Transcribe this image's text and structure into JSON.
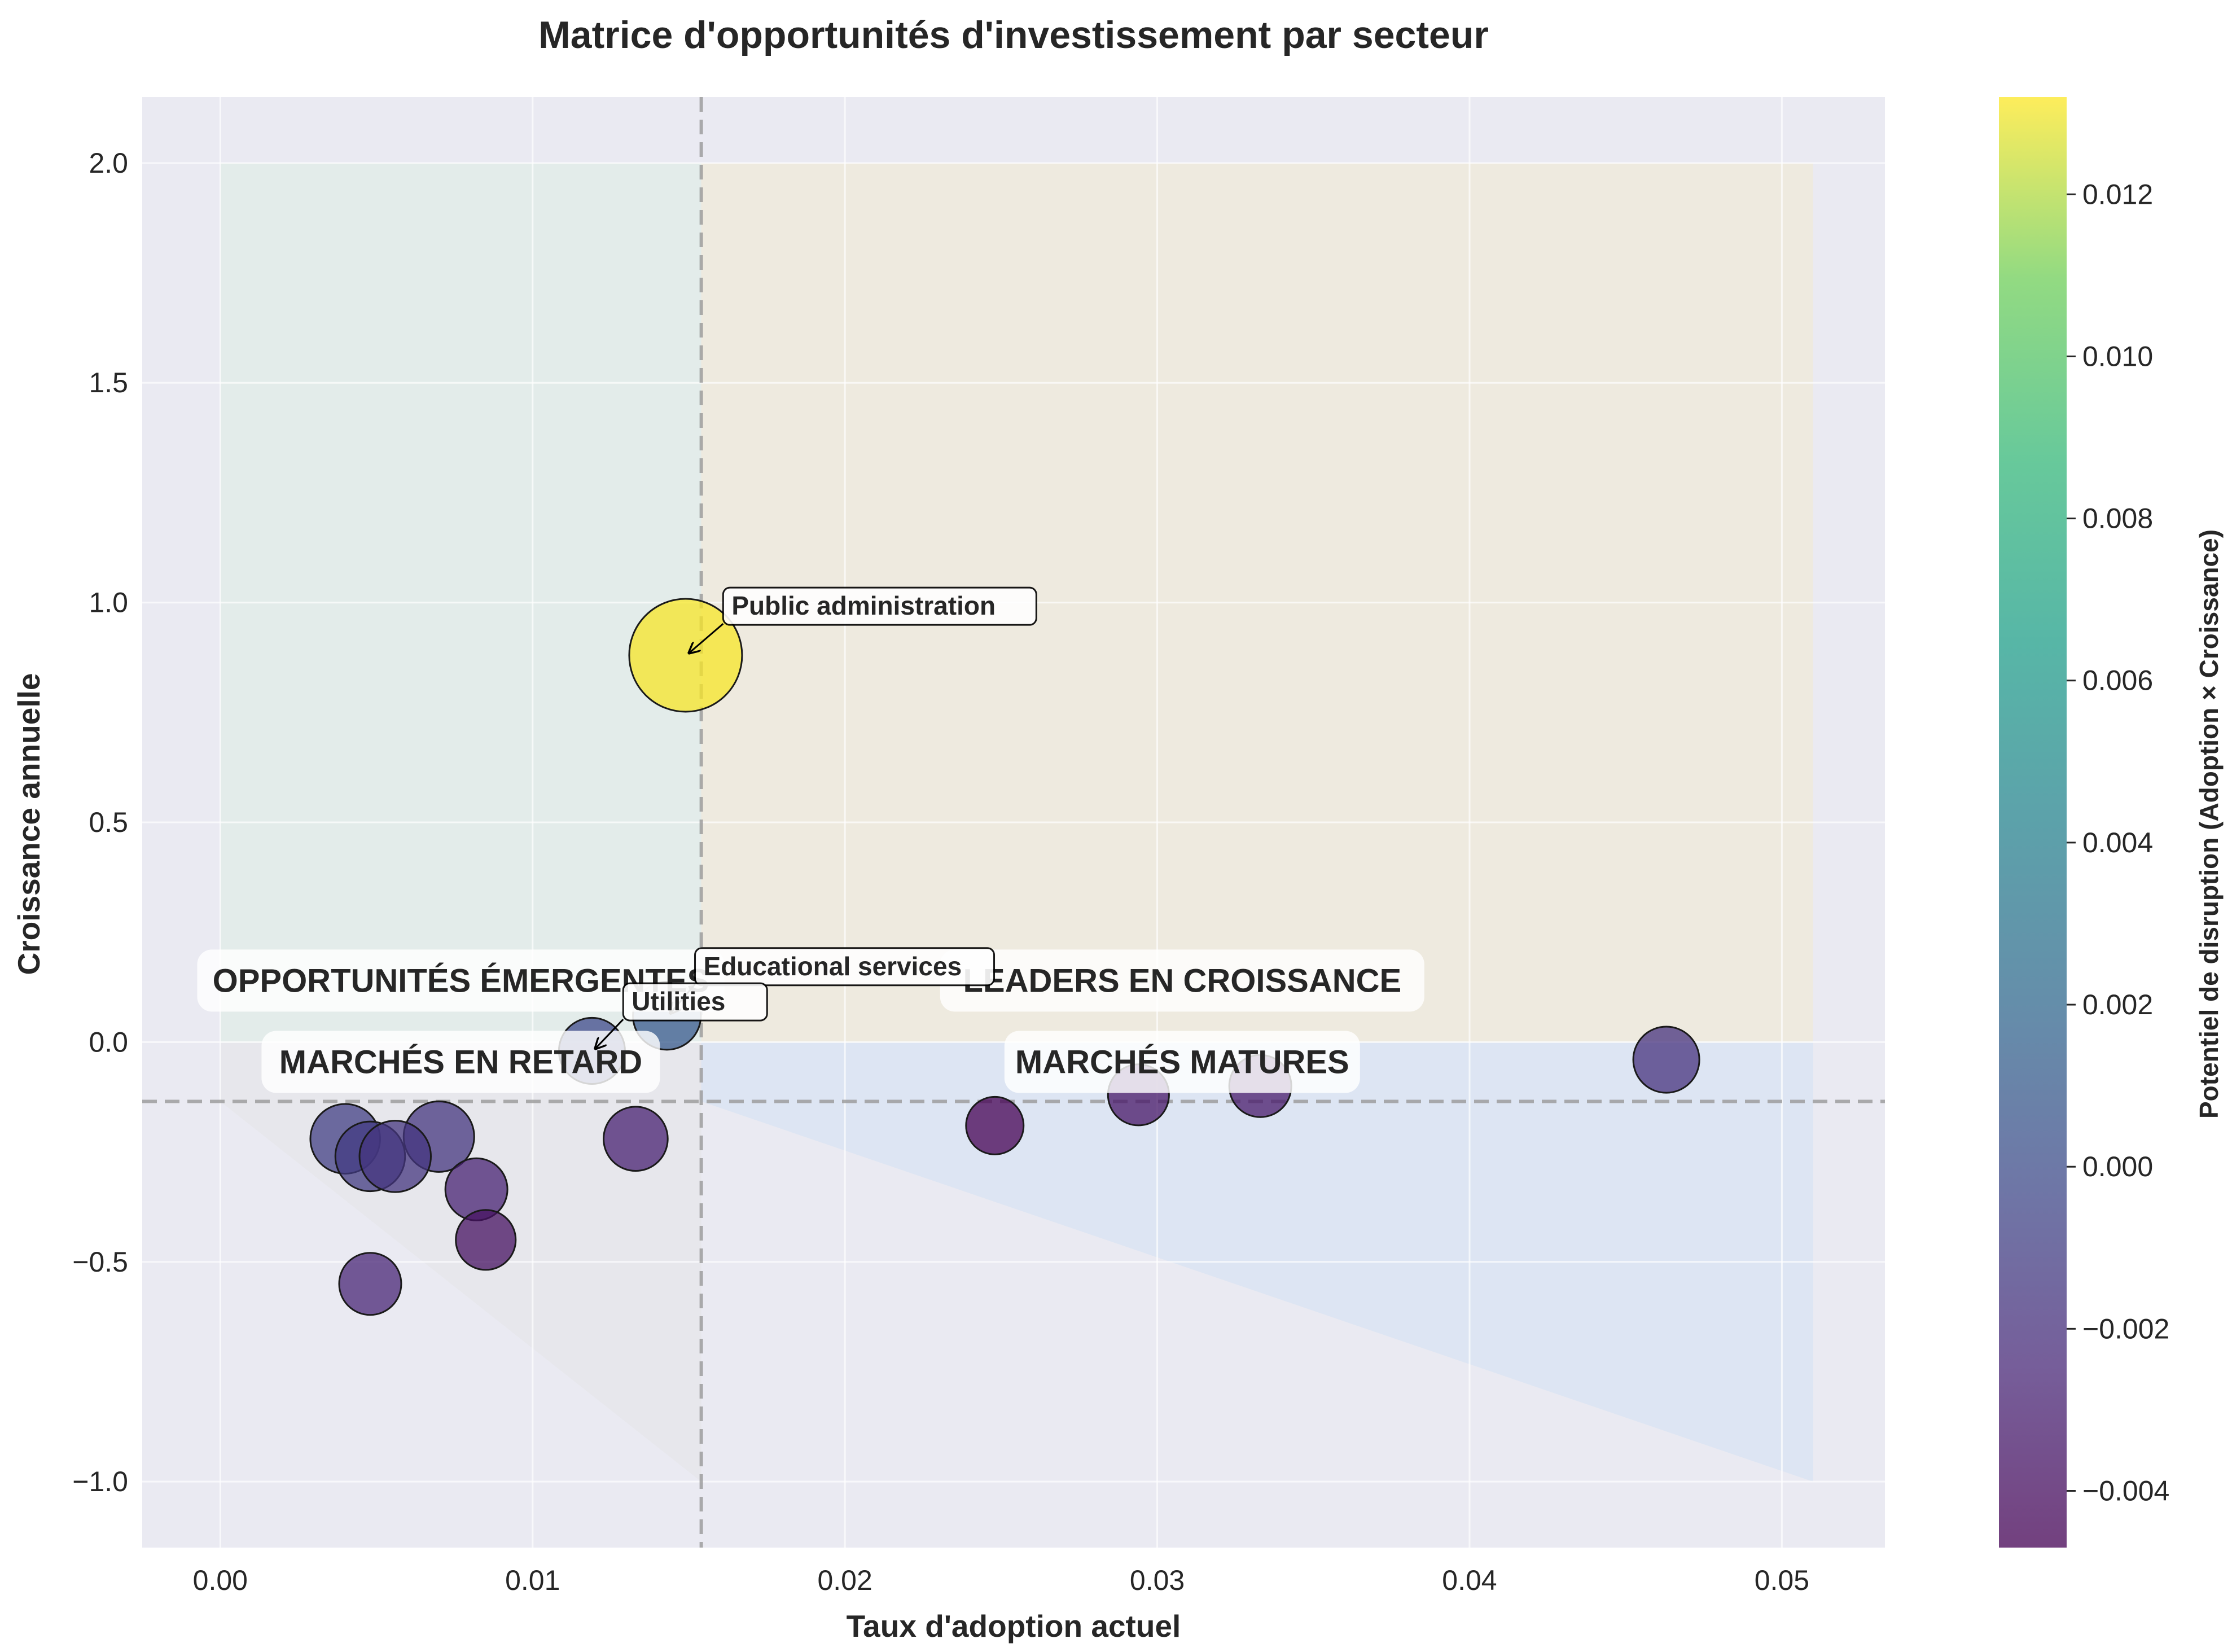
{
  "chart_data": {
    "type": "scatter",
    "title": "Matrice d'opportunités d'investissement par secteur",
    "xlabel": "Taux d'adoption actuel",
    "ylabel": "Croissance annuelle",
    "xlim": [
      -0.0025,
      0.0533
    ],
    "ylim": [
      -1.15,
      2.15
    ],
    "x_ticks": [
      0.0,
      0.01,
      0.02,
      0.03,
      0.04,
      0.05
    ],
    "x_tick_labels": [
      "0.00",
      "0.01",
      "0.02",
      "0.03",
      "0.04",
      "0.05"
    ],
    "y_ticks": [
      -1.0,
      -0.5,
      0.0,
      0.5,
      1.0,
      1.5,
      2.0
    ],
    "y_tick_labels": [
      "−1.0",
      "−0.5",
      "0.0",
      "0.5",
      "1.0",
      "1.5",
      "2.0"
    ],
    "grid": true,
    "reference_lines": {
      "x": 0.0154,
      "y": -0.135
    },
    "colorbar": {
      "label": "Potentiel de disruption (Adoption × Croissance)",
      "colormap": "viridis",
      "range": [
        -0.0047,
        0.0132
      ],
      "ticks": [
        -0.004,
        -0.002,
        0.0,
        0.002,
        0.004,
        0.006,
        0.008,
        0.01,
        0.012
      ],
      "tick_labels": [
        "−0.004",
        "−0.002",
        "0.000",
        "0.002",
        "0.004",
        "0.006",
        "0.008",
        "0.010",
        "0.012"
      ]
    },
    "quadrant_labels": [
      {
        "text": "OPPORTUNITÉS ÉMERGENTES",
        "x": 0.0077,
        "y": 0.14
      },
      {
        "text": "LEADERS EN CROISSANCE",
        "x": 0.0308,
        "y": 0.14
      },
      {
        "text": "MARCHÉS EN RETARD",
        "x": 0.0077,
        "y": -0.045
      },
      {
        "text": "MARCHÉS MATURES",
        "x": 0.0308,
        "y": -0.045
      }
    ],
    "points": [
      {
        "x": 0.0149,
        "y": 0.88,
        "c": 0.0131,
        "size": 1.0,
        "label": "Public administration",
        "label_x": 0.0161,
        "label_y": 0.98
      },
      {
        "x": 0.0143,
        "y": 0.06,
        "c": 0.0009,
        "size": 0.22,
        "label": "Educational services",
        "label_x": 0.0152,
        "label_y": 0.16
      },
      {
        "x": 0.0119,
        "y": -0.02,
        "c": -0.0002,
        "size": 0.2,
        "label": "Utilities",
        "label_x": 0.0129,
        "label_y": 0.08
      },
      {
        "x": 0.0463,
        "y": -0.04,
        "c": -0.0018,
        "size": 0.2
      },
      {
        "x": 0.0333,
        "y": -0.1,
        "c": -0.0033,
        "size": 0.16
      },
      {
        "x": 0.0294,
        "y": -0.12,
        "c": -0.0035,
        "size": 0.15
      },
      {
        "x": 0.0248,
        "y": -0.19,
        "c": -0.0047,
        "size": 0.12
      },
      {
        "x": 0.0133,
        "y": -0.22,
        "c": -0.0029,
        "size": 0.18
      },
      {
        "x": 0.004,
        "y": -0.22,
        "c": -0.0009,
        "size": 0.24
      },
      {
        "x": 0.007,
        "y": -0.215,
        "c": -0.0015,
        "size": 0.25
      },
      {
        "x": 0.0048,
        "y": -0.26,
        "c": -0.0012,
        "size": 0.24
      },
      {
        "x": 0.0056,
        "y": -0.26,
        "c": -0.0015,
        "size": 0.26
      },
      {
        "x": 0.0082,
        "y": -0.335,
        "c": -0.0028,
        "size": 0.16
      },
      {
        "x": 0.0085,
        "y": -0.45,
        "c": -0.0038,
        "size": 0.14
      },
      {
        "x": 0.0048,
        "y": -0.55,
        "c": -0.0026,
        "size": 0.16
      }
    ]
  }
}
